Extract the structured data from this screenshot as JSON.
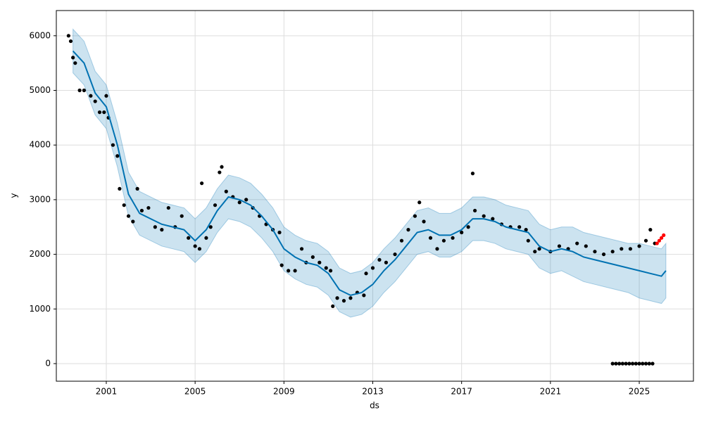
{
  "chart_data": {
    "type": "line",
    "xlabel": "ds",
    "ylabel": "y",
    "xlim": [
      1998.75,
      2027.44
    ],
    "ylim": [
      -322,
      6461
    ],
    "xticks": [
      2001,
      2005,
      2009,
      2013,
      2017,
      2021,
      2025
    ],
    "yticks": [
      0,
      1000,
      2000,
      3000,
      4000,
      5000,
      6000
    ],
    "grid": true,
    "x": [
      1999.5,
      2000,
      2000.5,
      2001,
      2001.5,
      2002,
      2002.5,
      2003,
      2003.5,
      2004,
      2004.5,
      2005,
      2005.5,
      2006,
      2006.5,
      2007,
      2007.5,
      2008,
      2008.5,
      2009,
      2009.5,
      2010,
      2010.5,
      2011,
      2011.5,
      2012,
      2012.5,
      2013,
      2013.5,
      2014,
      2014.5,
      2015,
      2015.5,
      2016,
      2016.5,
      2017,
      2017.5,
      2018,
      2018.5,
      2019,
      2019.5,
      2020,
      2020.5,
      2021,
      2021.5,
      2022,
      2022.5,
      2023,
      2023.5,
      2024,
      2024.5,
      2025,
      2025.5,
      2026,
      2026.2
    ],
    "series": [
      {
        "color": "#0072b2",
        "values": [
          5720,
          5500,
          4950,
          4700,
          4000,
          3100,
          2750,
          2650,
          2550,
          2500,
          2450,
          2250,
          2450,
          2800,
          3050,
          3000,
          2900,
          2700,
          2450,
          2100,
          1950,
          1850,
          1800,
          1650,
          1350,
          1250,
          1300,
          1450,
          1700,
          1900,
          2150,
          2400,
          2450,
          2350,
          2350,
          2450,
          2650,
          2650,
          2600,
          2500,
          2450,
          2400,
          2150,
          2050,
          2100,
          2050,
          1950,
          1900,
          1850,
          1800,
          1750,
          1700,
          1650,
          1600,
          1700
        ]
      }
    ],
    "band": {
      "color": "#0072b2",
      "upper": [
        6120,
        5900,
        5350,
        5100,
        4400,
        3500,
        3150,
        3050,
        2950,
        2900,
        2850,
        2650,
        2850,
        3200,
        3450,
        3400,
        3300,
        3100,
        2850,
        2500,
        2350,
        2250,
        2200,
        2050,
        1750,
        1650,
        1700,
        1850,
        2100,
        2300,
        2550,
        2800,
        2850,
        2750,
        2750,
        2850,
        3050,
        3050,
        3000,
        2900,
        2850,
        2800,
        2550,
        2450,
        2500,
        2500,
        2400,
        2350,
        2300,
        2250,
        2200,
        2200,
        2150,
        2100,
        2200
      ],
      "lower": [
        5320,
        5100,
        4550,
        4300,
        3600,
        2700,
        2350,
        2250,
        2150,
        2100,
        2050,
        1850,
        2050,
        2400,
        2650,
        2600,
        2500,
        2300,
        2050,
        1700,
        1550,
        1450,
        1400,
        1250,
        950,
        850,
        900,
        1050,
        1300,
        1500,
        1750,
        2000,
        2050,
        1950,
        1950,
        2050,
        2250,
        2250,
        2200,
        2100,
        2050,
        2000,
        1750,
        1650,
        1700,
        1600,
        1500,
        1450,
        1400,
        1350,
        1300,
        1200,
        1150,
        1100,
        1200
      ]
    },
    "points": [
      {
        "color": "#000000",
        "x": [
          1999.3,
          1999.4,
          1999.5,
          1999.6,
          1999.8,
          2000.0,
          2000.3,
          2000.5,
          2000.7,
          2000.9,
          2001.0,
          2001.1,
          2001.3,
          2001.5,
          2001.6,
          2001.8,
          2002.0,
          2002.2,
          2002.4,
          2002.6,
          2002.9,
          2003.2,
          2003.5,
          2003.8,
          2004.1,
          2004.4,
          2004.7,
          2005.0,
          2005.2,
          2005.3,
          2005.5,
          2005.7,
          2005.9,
          2006.1,
          2006.2,
          2006.4,
          2006.7,
          2007.0,
          2007.3,
          2007.6,
          2007.9,
          2008.2,
          2008.5,
          2008.8,
          2008.9,
          2009.2,
          2009.5,
          2009.8,
          2010.0,
          2010.3,
          2010.6,
          2010.9,
          2011.1,
          2011.2,
          2011.4,
          2011.7,
          2012.0,
          2012.3,
          2012.6,
          2012.7,
          2013.0,
          2013.3,
          2013.6,
          2014.0,
          2014.3,
          2014.6,
          2014.9,
          2015.1,
          2015.3,
          2015.6,
          2015.9,
          2016.2,
          2016.6,
          2017.0,
          2017.3,
          2017.5,
          2017.6,
          2018.0,
          2018.4,
          2018.8,
          2019.2,
          2019.6,
          2019.9,
          2020.0,
          2020.3,
          2020.5,
          2021.0,
          2021.4,
          2021.8,
          2022.2,
          2022.6,
          2023.0,
          2023.4,
          2023.8,
          2024.2,
          2024.6,
          2025.0,
          2025.3,
          2025.5,
          2025.7,
          2023.8,
          2023.95,
          2024.1,
          2024.25,
          2024.4,
          2024.55,
          2024.7,
          2024.85,
          2025.0,
          2025.15,
          2025.3,
          2025.45,
          2025.6
        ],
        "values": [
          6000,
          5900,
          5600,
          5500,
          5000,
          5000,
          4900,
          4800,
          4600,
          4600,
          4900,
          4500,
          4000,
          3800,
          3200,
          2900,
          2700,
          2600,
          3200,
          2800,
          2850,
          2500,
          2450,
          2850,
          2500,
          2700,
          2300,
          2150,
          2100,
          3300,
          2300,
          2500,
          2900,
          3500,
          3600,
          3150,
          3050,
          2950,
          3000,
          2850,
          2700,
          2550,
          2450,
          2400,
          1800,
          1700,
          1700,
          2100,
          1850,
          1950,
          1850,
          1750,
          1700,
          1050,
          1200,
          1150,
          1200,
          1300,
          1250,
          1650,
          1750,
          1900,
          1850,
          2000,
          2250,
          2450,
          2700,
          2950,
          2600,
          2300,
          2100,
          2250,
          2300,
          2400,
          2500,
          3480,
          2800,
          2700,
          2650,
          2550,
          2500,
          2500,
          2450,
          2250,
          2050,
          2100,
          2050,
          2150,
          2100,
          2200,
          2150,
          2050,
          2000,
          2050,
          2100,
          2100,
          2150,
          2250,
          2450,
          2200,
          0,
          0,
          0,
          0,
          0,
          0,
          0,
          0,
          0,
          0,
          0,
          0,
          0
        ]
      },
      {
        "color": "#ff0000",
        "x": [
          2025.8,
          2025.9,
          2026.0,
          2026.1
        ],
        "values": [
          2200,
          2250,
          2300,
          2350
        ]
      }
    ]
  }
}
